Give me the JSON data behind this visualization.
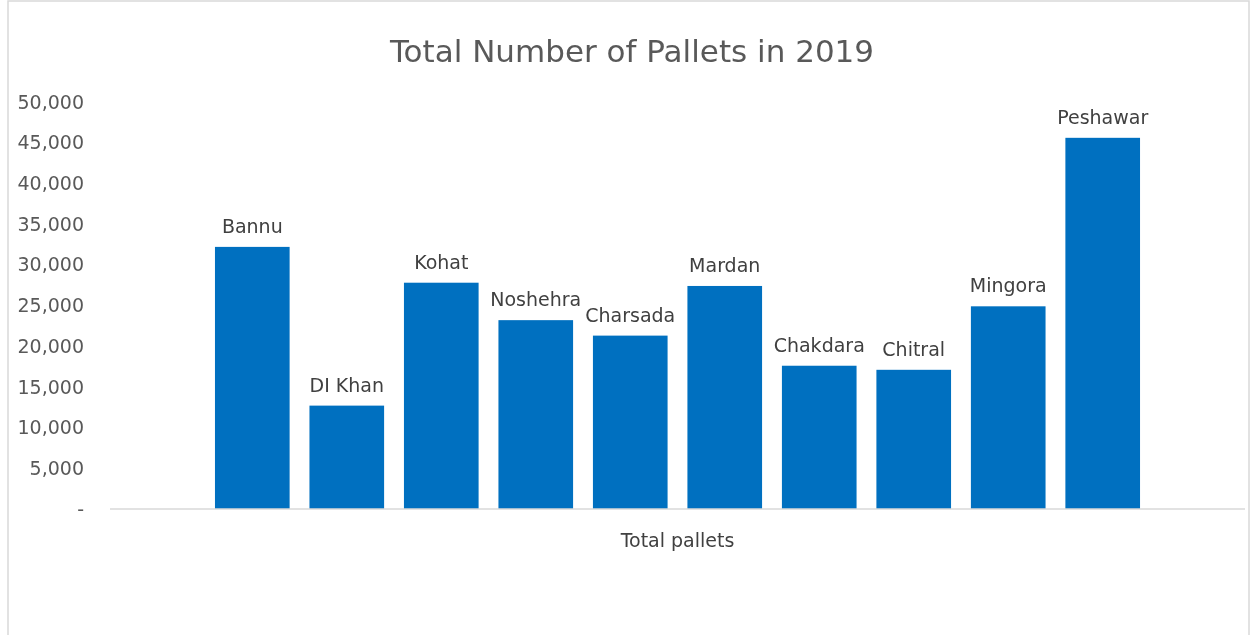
{
  "chart_data": {
    "type": "bar",
    "title": "Total Number of Pallets in 2019",
    "categories": [
      "Total pallets"
    ],
    "series": [
      {
        "name": "Bannu",
        "color": "#0070c0",
        "values": [
          32200
        ]
      },
      {
        "name": "DI Khan",
        "color": "#0070c0",
        "values": [
          12700
        ]
      },
      {
        "name": "Kohat",
        "color": "#0070c0",
        "values": [
          27800
        ]
      },
      {
        "name": "Noshehra",
        "color": "#0070c0",
        "values": [
          23200
        ]
      },
      {
        "name": "Charsada",
        "color": "#0070c0",
        "values": [
          21300
        ]
      },
      {
        "name": "Mardan",
        "color": "#0070c0",
        "values": [
          27400
        ]
      },
      {
        "name": "Chakdara",
        "color": "#0070c0",
        "values": [
          17600
        ]
      },
      {
        "name": "Chitral",
        "color": "#0070c0",
        "values": [
          17100
        ]
      },
      {
        "name": "Mingora",
        "color": "#0070c0",
        "values": [
          24900
        ]
      },
      {
        "name": "Peshawar",
        "color": "#0070c0",
        "values": [
          45600
        ]
      }
    ],
    "ylim": [
      0,
      50000
    ],
    "yticks": [
      {
        "value": 0,
        "label": "-"
      },
      {
        "value": 5000,
        "label": "5,000"
      },
      {
        "value": 10000,
        "label": "10,000"
      },
      {
        "value": 15000,
        "label": "15,000"
      },
      {
        "value": 20000,
        "label": "20,000"
      },
      {
        "value": 25000,
        "label": "25,000"
      },
      {
        "value": 30000,
        "label": "30,000"
      },
      {
        "value": 35000,
        "label": "35,000"
      },
      {
        "value": 40000,
        "label": "40,000"
      },
      {
        "value": 45000,
        "label": "45,000"
      },
      {
        "value": 50000,
        "label": "50,000"
      }
    ],
    "grid": false
  }
}
